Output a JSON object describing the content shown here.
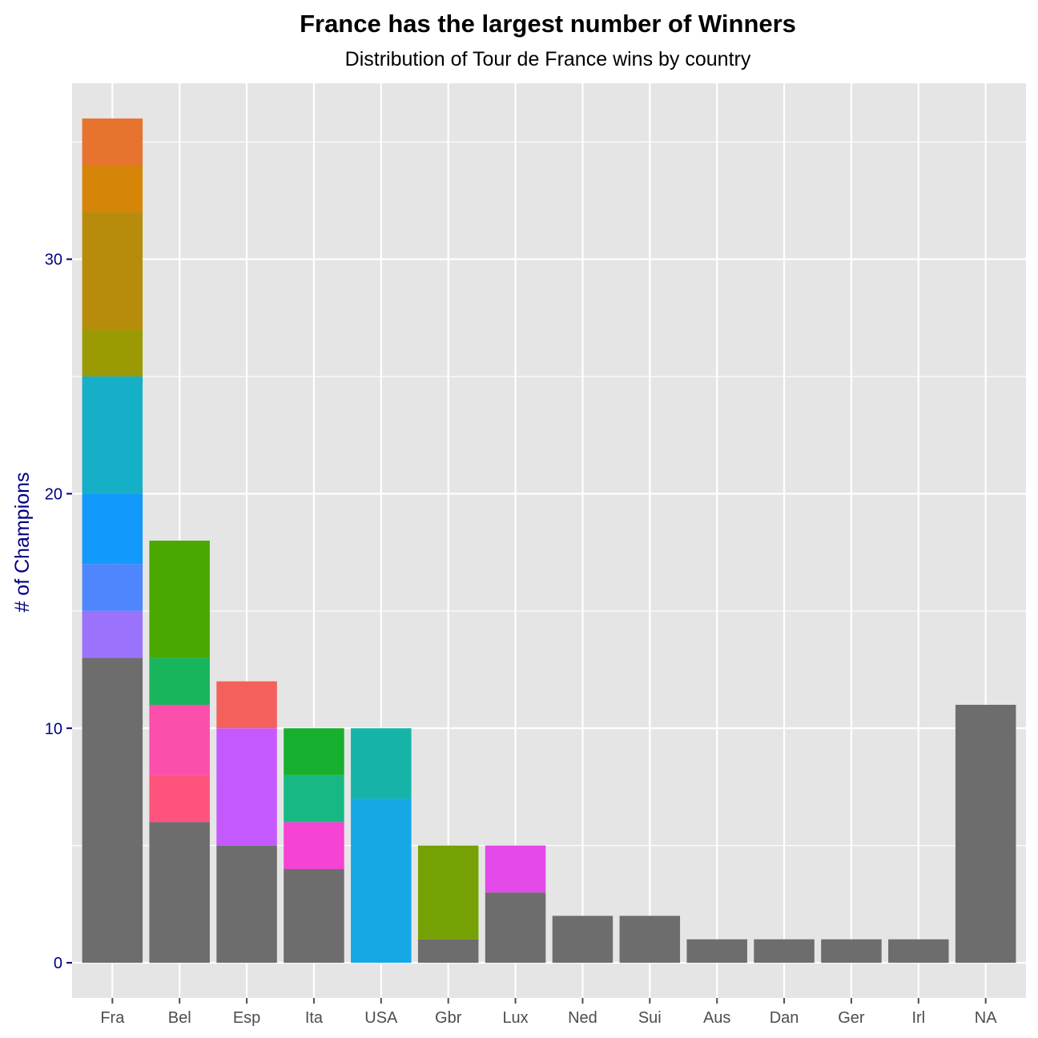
{
  "chart_data": {
    "type": "bar",
    "stacked": true,
    "title": "France has the largest number of Winners",
    "subtitle": "Distribution of Tour de France wins by country",
    "xlabel": "",
    "ylabel": "# of Champions",
    "ylim": [
      -1.5,
      37.5
    ],
    "yticks": [
      0,
      10,
      20,
      30
    ],
    "grid": true,
    "legend": "none",
    "colors": {
      "panel": "#e5e5e5",
      "grid": "#ffffff",
      "ytick_text": "#000080",
      "xtick_text": "#4d4d4d",
      "tick_mark_y": "#000080",
      "tick_mark_x": "#4d4d4d"
    },
    "categories": [
      "Fra",
      "Bel",
      "Esp",
      "Ita",
      "USA",
      "Gbr",
      "Lux",
      "Ned",
      "Sui",
      "Aus",
      "Dan",
      "Ger",
      "Irl",
      "NA"
    ],
    "stacks": [
      {
        "category": "Fra",
        "segments": [
          {
            "value": 13,
            "color": "#6d6d6d"
          },
          {
            "value": 2,
            "color": "#9b72fb"
          },
          {
            "value": 2,
            "color": "#4f86fd"
          },
          {
            "value": 3,
            "color": "#1399fc"
          },
          {
            "value": 5,
            "color": "#16afc8"
          },
          {
            "value": 2,
            "color": "#9b9a05"
          },
          {
            "value": 5,
            "color": "#b78c0a"
          },
          {
            "value": 2,
            "color": "#d58508"
          },
          {
            "value": 2,
            "color": "#e6732e"
          }
        ]
      },
      {
        "category": "Bel",
        "segments": [
          {
            "value": 6,
            "color": "#6d6d6d"
          },
          {
            "value": 2,
            "color": "#fd537d"
          },
          {
            "value": 3,
            "color": "#fc4eab"
          },
          {
            "value": 2,
            "color": "#19b55c"
          },
          {
            "value": 5,
            "color": "#4aa802"
          }
        ]
      },
      {
        "category": "Esp",
        "segments": [
          {
            "value": 5,
            "color": "#6d6d6d"
          },
          {
            "value": 5,
            "color": "#c45afd"
          },
          {
            "value": 2,
            "color": "#f4615c"
          }
        ]
      },
      {
        "category": "Ita",
        "segments": [
          {
            "value": 4,
            "color": "#6d6d6d"
          },
          {
            "value": 2,
            "color": "#f543d4"
          },
          {
            "value": 2,
            "color": "#18b884"
          },
          {
            "value": 2,
            "color": "#16b02e"
          }
        ]
      },
      {
        "category": "USA",
        "segments": [
          {
            "value": 7,
            "color": "#16a7e5"
          },
          {
            "value": 3,
            "color": "#16b4a6"
          }
        ]
      },
      {
        "category": "Gbr",
        "segments": [
          {
            "value": 1,
            "color": "#6d6d6d"
          },
          {
            "value": 4,
            "color": "#76a104"
          }
        ]
      },
      {
        "category": "Lux",
        "segments": [
          {
            "value": 3,
            "color": "#6d6d6d"
          },
          {
            "value": 2,
            "color": "#e34ae9"
          }
        ]
      },
      {
        "category": "Ned",
        "segments": [
          {
            "value": 2,
            "color": "#6d6d6d"
          }
        ]
      },
      {
        "category": "Sui",
        "segments": [
          {
            "value": 2,
            "color": "#6d6d6d"
          }
        ]
      },
      {
        "category": "Aus",
        "segments": [
          {
            "value": 1,
            "color": "#6d6d6d"
          }
        ]
      },
      {
        "category": "Dan",
        "segments": [
          {
            "value": 1,
            "color": "#6d6d6d"
          }
        ]
      },
      {
        "category": "Ger",
        "segments": [
          {
            "value": 1,
            "color": "#6d6d6d"
          }
        ]
      },
      {
        "category": "Irl",
        "segments": [
          {
            "value": 1,
            "color": "#6d6d6d"
          }
        ]
      },
      {
        "category": "NA",
        "segments": [
          {
            "value": 11,
            "color": "#6d6d6d"
          }
        ]
      }
    ]
  }
}
